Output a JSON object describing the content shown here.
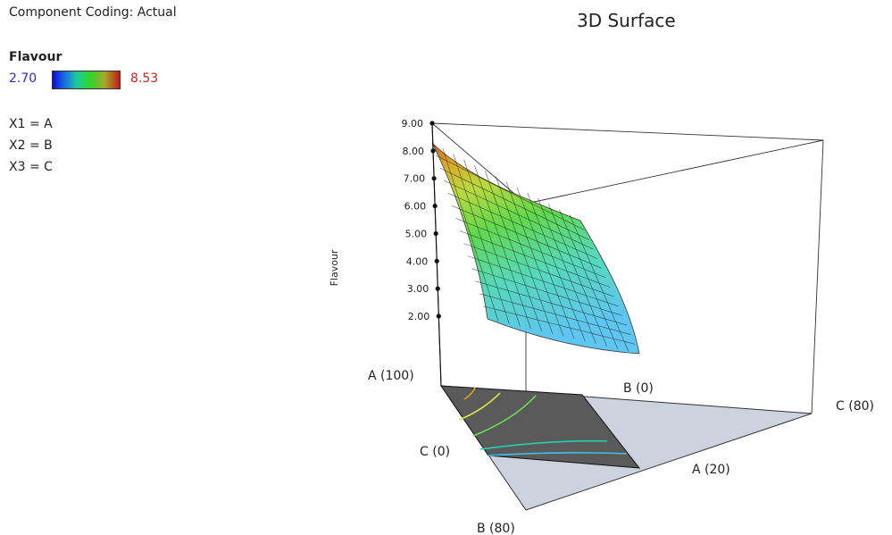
{
  "header": {
    "component_coding": "Component Coding: Actual",
    "chart_title": "3D Surface"
  },
  "legend": {
    "title": "Flavour",
    "min_label": "2.70",
    "max_label": "8.53",
    "min_color": "#2a2ad0",
    "max_color": "#cc2222"
  },
  "equations": [
    "X1 = A",
    "X2 = B",
    "X3 = C"
  ],
  "chart_data": {
    "type": "surface3d",
    "title": "3D Surface",
    "zlabel": "Flavour",
    "z_ticks": [
      "2.00",
      "3.00",
      "4.00",
      "5.00",
      "6.00",
      "7.00",
      "8.00",
      "9.00"
    ],
    "zlim": [
      2,
      9
    ],
    "color_range": [
      2.7,
      8.53
    ],
    "vertex_labels": [
      "A (100)",
      "B (80)",
      "C (80)"
    ],
    "edge_labels": [
      "B (0)",
      "C (0)",
      "A (20)"
    ],
    "surface_corners": [
      {
        "A": 100,
        "B": 0,
        "C": 0,
        "flavour": 8.0
      },
      {
        "A": 20,
        "B": 0,
        "C": 80,
        "flavour": 5.7
      },
      {
        "A": 20,
        "B": 80,
        "C": 0,
        "flavour": 2.5
      },
      {
        "A": 20,
        "B": 0,
        "C": 80,
        "flavour_min_edge": 1.3
      }
    ],
    "contour_colors": [
      "#e0a020",
      "#d8e040",
      "#6ee050",
      "#20d0b0",
      "#40c0f0"
    ]
  }
}
